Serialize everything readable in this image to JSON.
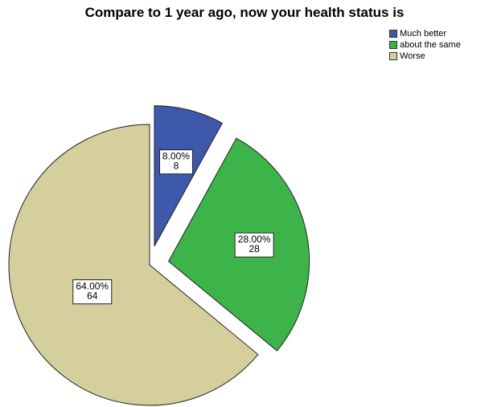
{
  "chart_data": {
    "type": "pie",
    "title": "Compare to 1 year ago, now your health status is",
    "legend_position": "top-right",
    "categories": [
      "Much better",
      "about the same",
      "Worse"
    ],
    "values": [
      8,
      28,
      64
    ],
    "percent_labels": [
      "8.00%",
      "28.00%",
      "64.00%"
    ],
    "count_labels": [
      "8",
      "28",
      "64"
    ],
    "exploded": [
      true,
      true,
      false
    ],
    "colors": [
      "#3e58ac",
      "#3cb44a",
      "#d5cf9e"
    ]
  }
}
